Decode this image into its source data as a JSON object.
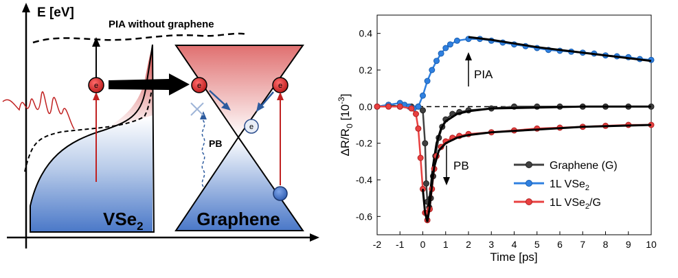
{
  "diagram": {
    "energy_axis_label": "E [eV]",
    "pia_without_graphene_label": "PIA without graphene",
    "pb_label": "PB",
    "electron_symbol": "e",
    "vse2_label_main": "VSe",
    "vse2_label_sub": "2",
    "graphene_label": "Graphene"
  },
  "chart_data": {
    "type": "scatter",
    "xlabel": "Time [ps]",
    "ylabel": "ΔR/R",
    "ylabel_sub": "0",
    "ylabel_unit_prefix": " [10",
    "ylabel_unit_sup": "-3",
    "ylabel_unit_suffix": "]",
    "xlim": [
      -2,
      10
    ],
    "ylim": [
      -0.7,
      0.5
    ],
    "xticks": [
      -2,
      -1,
      0,
      1,
      2,
      3,
      4,
      5,
      6,
      7,
      8,
      9,
      10
    ],
    "yticks": [
      -0.6,
      -0.4,
      -0.2,
      0.0,
      0.2,
      0.4
    ],
    "ytick_labels": [
      "-0.6",
      "-0.4",
      "-0.2",
      "0.0",
      "0.2",
      "0.4"
    ],
    "annotations": {
      "pia": "PIA",
      "pb": "PB"
    },
    "legend": {
      "placement": "bottom-right",
      "entries": [
        {
          "main": "Graphene (G)",
          "sub": "",
          "tail": "",
          "color": "#404040"
        },
        {
          "main": "1L VSe",
          "sub": "2",
          "tail": "",
          "color": "#2f80e0"
        },
        {
          "main": "1L VSe",
          "sub": "2",
          "tail": "/G",
          "color": "#e84040"
        }
      ]
    },
    "series": [
      {
        "key": "graphene",
        "color": "#404040",
        "edge": "#202020",
        "points": [
          [
            -2,
            0.0
          ],
          [
            -1.5,
            0.01
          ],
          [
            -1,
            0.0
          ],
          [
            -0.5,
            0.0
          ],
          [
            -0.2,
            0.0
          ],
          [
            0.0,
            -0.02
          ],
          [
            0.1,
            -0.2
          ],
          [
            0.15,
            -0.42
          ],
          [
            0.2,
            -0.52
          ],
          [
            0.28,
            -0.55
          ],
          [
            0.35,
            -0.5
          ],
          [
            0.45,
            -0.38
          ],
          [
            0.55,
            -0.27
          ],
          [
            0.7,
            -0.17
          ],
          [
            0.85,
            -0.11
          ],
          [
            1.0,
            -0.07
          ],
          [
            1.3,
            -0.04
          ],
          [
            1.6,
            -0.03
          ],
          [
            2,
            -0.02
          ],
          [
            3,
            -0.01
          ],
          [
            4,
            0.0
          ],
          [
            5,
            0.0
          ],
          [
            6,
            0.0
          ],
          [
            7,
            0.0
          ],
          [
            8,
            0.0
          ],
          [
            9,
            0.0
          ],
          [
            10,
            0.0
          ]
        ],
        "fit": [
          [
            0.2,
            -0.6
          ],
          [
            0.3,
            -0.5
          ],
          [
            0.45,
            -0.32
          ],
          [
            0.6,
            -0.2
          ],
          [
            0.8,
            -0.12
          ],
          [
            1.0,
            -0.08
          ],
          [
            1.5,
            -0.04
          ],
          [
            2,
            -0.025
          ],
          [
            3,
            -0.01
          ],
          [
            5,
            -0.005
          ],
          [
            7,
            0.0
          ],
          [
            10,
            0.0
          ]
        ]
      },
      {
        "key": "vse2",
        "color": "#2f80e0",
        "edge": "#1a5fb0",
        "points": [
          [
            -2,
            0.0
          ],
          [
            -1.5,
            0.01
          ],
          [
            -1,
            0.02
          ],
          [
            -0.8,
            0.01
          ],
          [
            -0.6,
            0.0
          ],
          [
            -0.4,
            -0.01
          ],
          [
            -0.2,
            0.0
          ],
          [
            0.0,
            0.06
          ],
          [
            0.2,
            0.14
          ],
          [
            0.4,
            0.2
          ],
          [
            0.6,
            0.25
          ],
          [
            0.8,
            0.29
          ],
          [
            1.0,
            0.32
          ],
          [
            1.2,
            0.34
          ],
          [
            1.5,
            0.36
          ],
          [
            2,
            0.37
          ],
          [
            2.5,
            0.37
          ],
          [
            3,
            0.36
          ],
          [
            3.5,
            0.35
          ],
          [
            4,
            0.34
          ],
          [
            4.5,
            0.33
          ],
          [
            5,
            0.32
          ],
          [
            5.5,
            0.31
          ],
          [
            6,
            0.305
          ],
          [
            6.5,
            0.3
          ],
          [
            7,
            0.295
          ],
          [
            7.5,
            0.29
          ],
          [
            8,
            0.28
          ],
          [
            8.5,
            0.275
          ],
          [
            9,
            0.27
          ],
          [
            9.5,
            0.26
          ],
          [
            10,
            0.255
          ]
        ],
        "fit": [
          [
            2,
            0.38
          ],
          [
            3,
            0.365
          ],
          [
            4,
            0.345
          ],
          [
            5,
            0.325
          ],
          [
            6,
            0.31
          ],
          [
            7,
            0.295
          ],
          [
            8,
            0.28
          ],
          [
            9,
            0.265
          ],
          [
            10,
            0.25
          ]
        ]
      },
      {
        "key": "vse2_g",
        "color": "#e84040",
        "edge": "#b02020",
        "points": [
          [
            -2,
            0.0
          ],
          [
            -1.5,
            0.0
          ],
          [
            -1,
            0.0
          ],
          [
            -0.5,
            -0.01
          ],
          [
            -0.3,
            -0.04
          ],
          [
            -0.2,
            -0.12
          ],
          [
            -0.1,
            -0.28
          ],
          [
            0.0,
            -0.45
          ],
          [
            0.1,
            -0.58
          ],
          [
            0.2,
            -0.62
          ],
          [
            0.3,
            -0.56
          ],
          [
            0.4,
            -0.45
          ],
          [
            0.5,
            -0.34
          ],
          [
            0.6,
            -0.27
          ],
          [
            0.8,
            -0.22
          ],
          [
            1.0,
            -0.19
          ],
          [
            1.3,
            -0.17
          ],
          [
            1.6,
            -0.16
          ],
          [
            2,
            -0.15
          ],
          [
            3,
            -0.14
          ],
          [
            4,
            -0.13
          ],
          [
            5,
            -0.12
          ],
          [
            6,
            -0.115
          ],
          [
            7,
            -0.11
          ],
          [
            8,
            -0.105
          ],
          [
            9,
            -0.1
          ],
          [
            10,
            -0.1
          ]
        ],
        "fit": [
          [
            0.0,
            -0.45
          ],
          [
            0.1,
            -0.58
          ],
          [
            0.2,
            -0.63
          ],
          [
            0.3,
            -0.55
          ],
          [
            0.4,
            -0.43
          ],
          [
            0.5,
            -0.33
          ],
          [
            0.7,
            -0.24
          ],
          [
            1.0,
            -0.2
          ],
          [
            1.5,
            -0.17
          ],
          [
            2,
            -0.155
          ],
          [
            3,
            -0.14
          ],
          [
            5,
            -0.125
          ],
          [
            7,
            -0.11
          ],
          [
            10,
            -0.1
          ]
        ]
      }
    ]
  }
}
